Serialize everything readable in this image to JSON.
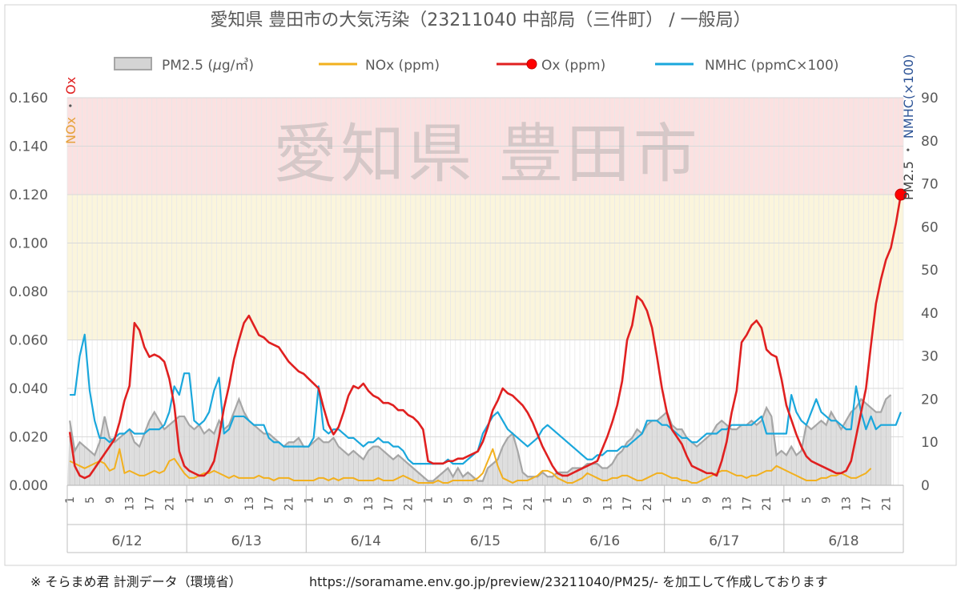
{
  "chart_data": {
    "type": "line",
    "title": "愛知県 豊田市の大気汚染（23211040 中部局（三件町） / 一般局）",
    "watermark": "愛知県 豊田市",
    "left_axis": {
      "title_parts": [
        "NOx",
        "・",
        "Ox"
      ],
      "title_colors": [
        "#e6a23c",
        "#595959",
        "#e02020"
      ],
      "ylim": [
        0,
        0.16
      ],
      "ticks": [
        "0.000",
        "0.020",
        "0.040",
        "0.060",
        "0.080",
        "0.100",
        "0.120",
        "0.140",
        "0.160"
      ]
    },
    "right_axis": {
      "title_parts": [
        "PM2.5",
        "・",
        "NMHC(×100)"
      ],
      "title_colors": [
        "#404040",
        "#595959",
        "#2f5597"
      ],
      "ylim": [
        0,
        90
      ],
      "ticks": [
        "0",
        "10",
        "20",
        "30",
        "40",
        "50",
        "60",
        "70",
        "80",
        "90"
      ]
    },
    "bands": [
      {
        "from": 0.12,
        "to": 0.16,
        "color": "#fbe1e1"
      },
      {
        "from": 0.06,
        "to": 0.12,
        "color": "#fbf5dc"
      }
    ],
    "x_hour_ticks": [
      "1",
      "5",
      "9",
      "13",
      "17",
      "21"
    ],
    "days": [
      "6/12",
      "6/13",
      "6/14",
      "6/15",
      "6/16",
      "6/17",
      "6/18"
    ],
    "hours_total": 168,
    "series": [
      {
        "name": "PM2.5 (μg/㎥)",
        "axis": "right",
        "style": "area",
        "color": "#a6a6a6",
        "values": [
          15,
          8,
          10,
          9,
          8,
          7,
          10,
          16,
          11,
          10,
          11,
          12,
          13,
          10,
          9,
          12,
          15,
          17,
          15,
          13,
          14,
          15,
          16,
          16,
          14,
          13,
          14,
          12,
          13,
          12,
          15,
          13,
          14,
          17,
          20,
          17,
          15,
          14,
          13,
          12,
          12,
          11,
          10,
          9,
          10,
          10,
          11,
          9,
          9,
          10,
          11,
          10,
          10,
          11,
          9,
          8,
          7,
          8,
          7,
          6,
          8,
          9,
          9,
          8,
          7,
          6,
          7,
          6,
          5,
          4,
          3,
          2,
          1,
          1,
          2,
          3,
          4,
          2,
          4,
          2,
          3,
          2,
          1,
          1,
          4,
          5,
          6,
          9,
          11,
          12,
          8,
          3,
          2,
          2,
          2,
          3,
          2,
          2,
          3,
          3,
          3,
          4,
          4,
          4,
          5,
          5,
          5,
          4,
          4,
          5,
          7,
          8,
          10,
          11,
          13,
          12,
          14,
          15,
          15,
          16,
          17,
          14,
          13,
          13,
          11,
          10,
          9,
          10,
          11,
          12,
          14,
          15,
          14,
          13,
          13,
          14,
          14,
          15,
          14,
          15,
          18,
          16,
          7,
          8,
          7,
          9,
          7,
          8,
          14,
          13,
          14,
          15,
          14,
          17,
          15,
          13,
          15,
          17,
          18,
          20,
          19,
          18,
          17,
          17,
          20,
          21
        ],
        "legend_label": "PM2.5 (",
        "legend_unit_mu": "μ",
        "legend_unit_rest": "g/㎥)"
      },
      {
        "name": "NOx (ppm)",
        "axis": "left",
        "style": "line",
        "color": "#f2b01e",
        "values": [
          0.01,
          0.009,
          0.008,
          0.007,
          0.008,
          0.009,
          0.01,
          0.009,
          0.006,
          0.007,
          0.015,
          0.005,
          0.006,
          0.005,
          0.004,
          0.004,
          0.005,
          0.006,
          0.005,
          0.006,
          0.01,
          0.011,
          0.008,
          0.005,
          0.003,
          0.003,
          0.004,
          0.005,
          0.005,
          0.006,
          0.005,
          0.004,
          0.003,
          0.004,
          0.003,
          0.003,
          0.003,
          0.003,
          0.004,
          0.003,
          0.003,
          0.002,
          0.003,
          0.003,
          0.003,
          0.002,
          0.002,
          0.002,
          0.002,
          0.002,
          0.003,
          0.003,
          0.002,
          0.003,
          0.002,
          0.003,
          0.003,
          0.003,
          0.002,
          0.002,
          0.002,
          0.002,
          0.003,
          0.002,
          0.002,
          0.002,
          0.003,
          0.004,
          0.003,
          0.002,
          0.001,
          0.001,
          0.001,
          0.001,
          0.002,
          0.001,
          0.001,
          0.002,
          0.002,
          0.002,
          0.002,
          0.002,
          0.003,
          0.005,
          0.01,
          0.015,
          0.008,
          0.003,
          0.002,
          0.001,
          0.002,
          0.002,
          0.002,
          0.003,
          0.004,
          0.006,
          0.006,
          0.005,
          0.003,
          0.002,
          0.001,
          0.001,
          0.002,
          0.003,
          0.005,
          0.004,
          0.003,
          0.002,
          0.002,
          0.003,
          0.003,
          0.004,
          0.004,
          0.003,
          0.002,
          0.002,
          0.003,
          0.004,
          0.005,
          0.005,
          0.004,
          0.003,
          0.003,
          0.002,
          0.002,
          0.001,
          0.001,
          0.002,
          0.003,
          0.004,
          0.005,
          0.006,
          0.006,
          0.005,
          0.004,
          0.004,
          0.003,
          0.004,
          0.004,
          0.005,
          0.006,
          0.006,
          0.008,
          0.007,
          0.006,
          0.005,
          0.004,
          0.003,
          0.002,
          0.002,
          0.002,
          0.003,
          0.003,
          0.004,
          0.004,
          0.005,
          0.004,
          0.003,
          0.003,
          0.004,
          0.005,
          0.007
        ]
      },
      {
        "name": "Ox (ppm)",
        "axis": "left",
        "style": "line",
        "color": "#e02020",
        "end_marker": true,
        "values": [
          0.022,
          0.008,
          0.004,
          0.003,
          0.004,
          0.007,
          0.01,
          0.013,
          0.016,
          0.019,
          0.026,
          0.035,
          0.041,
          0.067,
          0.064,
          0.057,
          0.053,
          0.054,
          0.053,
          0.051,
          0.044,
          0.033,
          0.014,
          0.008,
          0.006,
          0.005,
          0.004,
          0.004,
          0.006,
          0.01,
          0.02,
          0.032,
          0.041,
          0.052,
          0.06,
          0.067,
          0.07,
          0.066,
          0.062,
          0.061,
          0.059,
          0.058,
          0.057,
          0.054,
          0.051,
          0.049,
          0.047,
          0.046,
          0.044,
          0.042,
          0.04,
          0.032,
          0.025,
          0.021,
          0.024,
          0.03,
          0.037,
          0.041,
          0.04,
          0.042,
          0.039,
          0.037,
          0.036,
          0.034,
          0.034,
          0.033,
          0.031,
          0.031,
          0.029,
          0.028,
          0.026,
          0.023,
          0.01,
          0.009,
          0.009,
          0.009,
          0.01,
          0.01,
          0.011,
          0.011,
          0.012,
          0.013,
          0.014,
          0.018,
          0.024,
          0.031,
          0.035,
          0.04,
          0.038,
          0.037,
          0.035,
          0.033,
          0.03,
          0.026,
          0.021,
          0.016,
          0.012,
          0.008,
          0.005,
          0.004,
          0.004,
          0.005,
          0.006,
          0.007,
          0.008,
          0.009,
          0.01,
          0.015,
          0.02,
          0.026,
          0.033,
          0.043,
          0.06,
          0.066,
          0.078,
          0.076,
          0.072,
          0.065,
          0.053,
          0.04,
          0.03,
          0.023,
          0.02,
          0.017,
          0.012,
          0.008,
          0.007,
          0.006,
          0.005,
          0.005,
          0.004,
          0.01,
          0.018,
          0.03,
          0.039,
          0.059,
          0.062,
          0.066,
          0.068,
          0.065,
          0.056,
          0.054,
          0.053,
          0.044,
          0.033,
          0.027,
          0.021,
          0.016,
          0.012,
          0.01,
          0.009,
          0.008,
          0.007,
          0.006,
          0.005,
          0.005,
          0.006,
          0.01,
          0.02,
          0.03,
          0.04,
          0.058,
          0.075,
          0.085,
          0.093,
          0.098,
          0.108,
          0.12
        ]
      },
      {
        "name": "NMHC (ppmC×100)",
        "axis": "right",
        "style": "line",
        "color": "#1aa7dc",
        "values": [
          21,
          21,
          30,
          35,
          22,
          15,
          11,
          11,
          10,
          11,
          12,
          12,
          13,
          12,
          12,
          12,
          13,
          13,
          13,
          14,
          17,
          23,
          21,
          26,
          26,
          15,
          14,
          15,
          17,
          22,
          25,
          12,
          13,
          16,
          16,
          16,
          15,
          14,
          14,
          14,
          11,
          10,
          10,
          9,
          9,
          9,
          9,
          9,
          9,
          11,
          23,
          13,
          12,
          13,
          13,
          12,
          11,
          11,
          10,
          9,
          10,
          10,
          11,
          10,
          10,
          9,
          9,
          8,
          6,
          5,
          5,
          5,
          5,
          5,
          5,
          5,
          6,
          5,
          5,
          5,
          6,
          7,
          8,
          12,
          14,
          16,
          17,
          15,
          13,
          12,
          11,
          10,
          9,
          10,
          11,
          13,
          14,
          13,
          12,
          11,
          10,
          9,
          8,
          7,
          6,
          6,
          7,
          7,
          8,
          8,
          8,
          9,
          9,
          10,
          11,
          12,
          15,
          15,
          15,
          14,
          14,
          13,
          12,
          11,
          11,
          10,
          10,
          11,
          12,
          12,
          12,
          13,
          13,
          14,
          14,
          14,
          14,
          14,
          15,
          16,
          12,
          12,
          12,
          12,
          12,
          21,
          17,
          15,
          14,
          17,
          20,
          17,
          16,
          15,
          15,
          14,
          13,
          13,
          23,
          17,
          13,
          16,
          13,
          14,
          14,
          14,
          14,
          17
        ]
      }
    ]
  },
  "footer": {
    "source": "※ そらまめ君 計測データ（環境省）",
    "url_note": "https://soramame.env.go.jp/preview/23211040/PM25/- を加工して作成しております"
  }
}
